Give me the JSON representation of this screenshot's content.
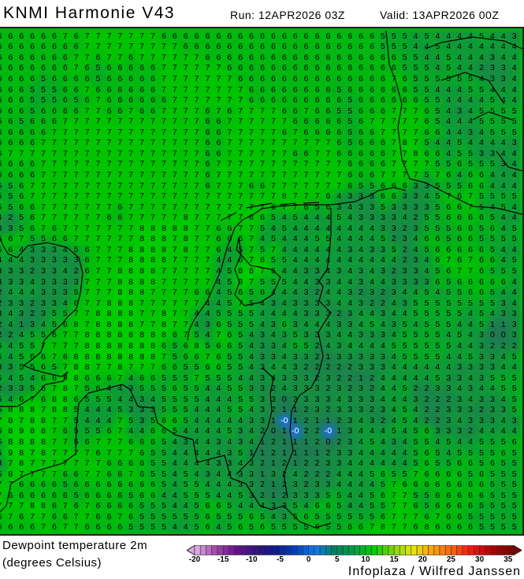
{
  "header": {
    "title": "KNMI Harmonie V43",
    "run": "Run: 12APR2026 03Z",
    "valid": "Valid: 13APR2026 00Z"
  },
  "map": {
    "watermark": "Infoplaza / Wilfred Janssen",
    "grid_values": [
      "6 6 6 6 6 6 7 6 7 7 7 7 7 7 7 6 6 6 6 6 6 6 6 6 6 6 6 6 6 6 6 6 6 6 6 5 5 5 4 5 4 4 4 4 5 4 4 3",
      "6 6 6 6 6 6 6 6 7 7 7 7 7 7 7 7 7 6 6 6 6 6 6 6 6 6 6 6 6 6 6 6 6 6 6 5 5 5 4 4 5 4 4 4 4 4 4 4",
      "6 6 6 6 6 6 6 7 7 6 7 7 6 7 7 7 7 7 7 6 6 6 6 6 6 6 6 6 6 6 6 6 6 6 6 6 6 5 5 4 4 5 4 4 4 3 4 4",
      "6 6 6 6 6 6 6 7 6 5 6 6 6 6 6 7 7 7 7 7 7 6 6 6 6 6 6 6 6 6 6 6 6 6 6 6 6 5 5 5 4 5 4 4 2 3 3 4",
      "6 6 6 6 5 6 6 6 6 5 6 6 6 6 6 7 7 7 7 7 7 7 6 6 6 6 6 6 6 6 6 6 6 6 6 6 7 6 5 5 5 5 5 5 4 3 3 4",
      "6 6 6 5 5 5 6 6 7 6 6 6 6 6 6 7 7 7 7 7 7 7 7 6 6 6 6 6 6 6 6 5 6 6 6 6 6 6 5 5 4 4 4 5 5 4 4 4",
      "6 6 6 5 5 5 6 5 6 7 6 6 6 6 6 6 7 7 7 7 7 7 7 6 6 6 6 6 6 6 6 6 5 6 6 6 6 6 6 5 5 4 4 4 4 5 4 4",
      "6 6 6 5 6 6 6 6 7 7 6 6 7 6 6 7 7 7 7 6 7 6 7 7 7 7 6 6 7 6 6 5 5 6 6 6 7 7 7 6 5 4 3 4 5 5 5 5",
      "6 6 5 6 6 6 7 7 7 7 7 7 7 7 7 7 7 7 7 6 6 7 7 7 7 7 7 6 6 6 6 6 5 6 7 7 7 7 7 6 5 4 4 4 5 5 5 5",
      "6 6 6 6 6 7 7 7 7 7 7 7 7 7 7 7 7 7 7 6 6 7 7 7 7 7 6 7 6 6 6 6 5 6 6 7 7 7 7 6 6 4 4 3 4 5 5 5",
      "6 6 6 6 7 7 7 7 7 7 7 7 7 7 7 7 7 7 7 6 6 7 7 7 7 7 7 7 7 7 7 6 5 6 6 6 7 8 7 5 4 4 5 4 4 4 4 3",
      "6 7 7 7 7 7 7 7 7 7 7 7 7 7 7 7 7 7 7 6 6 7 7 7 7 7 7 6 6 7 7 6 6 6 6 6 7 7 8 6 6 4 5 5 3 3 4 4",
      "6 6 6 6 7 7 7 7 7 7 7 7 7 7 7 7 7 7 7 6 7 7 7 7 7 7 7 7 7 7 7 7 6 6 6 6 7 7 7 7 5 5 6 5 5 5 3 4",
      "6 6 6 6 7 7 7 7 7 7 7 7 7 7 7 7 7 7 7 6 7 7 7 7 7 7 7 7 7 7 7 7 6 6 6 7 7 7 7 5 7 6 4 6 6 4 4 4",
      "5 5 6 7 7 7 7 7 7 7 7 7 7 7 7 7 7 7 7 6 7 7 7 6 6 7 7 7 7 7 7 7 6 5 5 6 6 6 3 3 5 5 5 6 6 4 4 4",
      "5 5 6 7 7 7 7 7 7 7 7 7 7 7 7 7 7 7 7 7 7 7 7 7 7 7 8 7 7 7 6 4 3 3 3 6 6 3 3 4 5 7 6 7 5 5 5 5",
      "6 5 6 6 7 7 7 7 7 7 7 6 7 7 7 7 7 7 7 7 7 7 7 7 7 6 7 7 6 5 6 3 4 3 3 5 3 3 3 3 5 6 6 7 5 4 5 4",
      "4 2 5 6 7 7 7 7 7 7 6 6 7 7 7 7 7 8 7 7 7 7 7 8 6 5 4 5 4 4 4 5 4 3 3 3 3 4 2 5 5 6 6 6 6 5 4 4",
      "3 3 5 6 7 6 7 7 7 7 7 7 7 8 8 8 8 8 7 7 6 6 7 7 5 4 5 4 4 4 4 4 4 4 4 3 3 2 3 5 5 5 6 6 5 6 4 5",
      "6 6 7 5 5 6 6 7 7 7 7 7 7 8 8 8 7 8 7 7 6 6 6 7 4 5 4 4 4 5 5 4 4 4 4 5 2 3 4 6 6 5 6 6 5 5 5 5",
      "5 6 4 3 3 3 4 5 6 7 7 7 8 8 8 8 7 8 7 7 6 4 5 7 5 7 4 4 4 4 4 4 3 4 3 3 5 2 4 5 6 6 6 6 6 5 4 4",
      "4 4 4 3 3 3 3 3 6 7 7 7 8 8 8 8 7 7 7 7 4 4 6 7 8 5 5 4 4 4 4 4 4 4 4 4 4 2 3 4 6 7 6 7 6 6 4 5",
      "3 3 3 2 3 3 4 2 6 7 7 8 8 8 8 7 7 7 7 7 4 5 8 8 7 6 4 4 3 3 4 3 4 3 4 3 2 3 3 4 5 6 7 7 6 5 5 5",
      "3 3 3 4 3 3 3 3 7 7 7 8 8 8 8 7 7 7 7 7 4 5 8 7 5 5 5 4 4 3 3 4 4 3 4 4 3 3 3 3 6 5 6 6 6 6 6 4",
      "2 4 4 4 3 3 3 5 7 7 7 8 8 8 7 7 7 7 6 6 4 5 6 5 6 4 4 4 3 2 4 4 3 2 3 2 3 4 4 5 4 5 5 6 6 5 4 4",
      "2 3 3 2 3 3 4 6 7 7 8 8 8 7 7 7 7 7 7 4 4 5 7 5 4 3 4 3 3 3 3 4 4 3 2 2 4 3 5 5 5 5 5 5 5 5 3 4",
      "3 4 3 2 3 5 5 7 7 8 8 8 8 7 7 8 7 7 4 4 5 5 5 5 4 4 4 4 3 3 3 2 3 4 4 3 4 4 5 5 5 5 5 4 5 4 3 3",
      "2 4 1 3 4 5 6 8 7 8 8 8 8 7 7 8 7 7 4 3 6 5 5 5 4 3 6 3 4 4 4 3 3 4 5 4 3 5 4 5 5 5 4 4 5 1 1 3",
      "2 2 4 5 5 6 7 7 8 8 8 8 8 8 8 8 6 7 5 4 7 6 5 4 3 4 3 5 3 3 3 4 4 3 3 3 4 5 5 5 5 4 5 4 3 0 0 3",
      "5 4 5 5 7 7 7 7 8 8 8 8 8 8 8 6 5 6 8 5 6 6 5 4 3 3 4 5 5 2 4 3 4 4 4 4 5 5 5 5 5 5 4 4 3 2 2 2",
      "5 4 5 6 6 7 6 8 8 8 8 8 8 8 8 7 5 6 6 7 6 5 5 4 3 3 4 3 3 2 1 3 3 3 3 3 4 5 5 5 5 4 4 5 3 3 4 5",
      "3 3 5 5 6 5 7 8 8 7 7 8 7 7 7 6 6 5 5 6 6 5 5 4 3 4 4 3 2 2 2 2 2 3 3 3 4 4 4 4 4 4 3 3 3 3 4 4",
      "5 4 5 4 6 6 9 8 6 6 6 7 4 6 6 5 5 5 7 5 5 5 4 4 3 4 3 3 3 2 3 2 2 1 2 4 4 4 4 4 5 3 3 4 3 5 5 5",
      "2 3 3 5 6 7 8 7 5 6 4 4 3 5 5 5 6 5 5 4 4 5 5 3 3 2 4 3 3 3 2 3 2 3 2 4 4 5 2 2 3 3 4 3 4 4 5 5",
      "5 4 6 7 6 8 8 6 5 5 5 4 4 3 4 5 5 5 5 4 4 4 5 5 3 3 0 3 3 3 3 4 3 3 3 4 4 4 3 2 2 2 3 4 3 3 4 5",
      "5 8 8 8 7 8 8 5 4 4 4 5 3 3 3 5 5 5 4 4 4 5 5 4 3 2 1 1 2 3 2 3 3 3 2 3 4 5 4 2 2 3 3 3 2 3 3 5",
      "7 8 7 8 8 7 7 5 4 4 4 7 5 3 5 6 6 5 4 4 4 4 4 3 3 1 -0 1 2 1 1 2 3 4 3 2 4 5 4 2 2 3 4 3 3 3 4 3",
      "6 8 9 8 8 7 6 5 5 5 6 7 4 4 6 6 5 4 4 4 4 5 3 4 2 0 1 -0 2 2 -0 1 3 4 4 4 5 4 5 6 3 3 3 2 4 4 4 4",
      "5 8 8 8 8 7 7 5 6 7 7 7 6 6 6 5 4 3 4 4 3 4 3 4 1 2 1 1 1 2 0 2 3 4 5 4 3 4 5 5 4 5 4 4 5 5 5 6",
      "5 9 8 7 8 7 7 7 7 6 7 7 7 6 5 5 4 4 4 4 4 3 5 1 1 2 1 1 1 1 2 3 3 4 4 4 4 4 5 6 5 4 5 5 5 5 6 5",
      "3 7 8 7 7 7 7 7 7 7 6 6 6 6 5 5 4 4 4 4 3 3 4 3 2 1 2 1 2 2 3 3 4 4 4 4 4 4 5 6 5 5 6 6 5 6 5 5",
      "5 8 7 7 7 7 6 6 7 7 6 6 7 6 5 5 4 5 4 3 4 4 3 3 1 3 2 4 2 2 2 4 4 4 5 6 5 5 7 6 6 6 6 5 6 5 5 5",
      "7 7 6 6 6 6 5 6 6 6 6 6 6 6 6 5 4 5 5 4 4 4 3 3 2 1 2 3 2 3 3 4 4 4 4 5 7 6 6 6 6 6 6 6 6 5 5 5",
      "7 6 6 6 6 6 6 5 6 6 6 6 5 6 6 4 4 5 5 5 4 4 5 3 2 1 2 3 3 3 5 5 4 4 5 6 7 7 5 5 6 6 6 6 6 5 5 5",
      "7 7 7 8 8 6 7 6 7 6 6 6 6 5 5 5 4 4 5 6 6 5 4 4 4 3 3 5 4 6 6 5 4 4 5 5 7 7 6 5 6 6 6 6 5 5 5 5",
      "6 7 6 7 7 6 6 7 7 6 6 7 6 5 5 5 5 5 5 6 5 5 5 6 5 4 3 5 6 5 5 5 5 5 5 6 7 7 7 6 7 6 6 5 5 5 5 5",
      "6 6 6 6 7 6 7 7 6 6 6 6 5 5 5 5 4 4 5 6 4 5 6 5 6 5 5 5 5 6 5 5 6 6 7 8 7 7 6 8 6 6 6 6 5 5 5 5"
    ],
    "value_colors": {
      "9": "#00d000",
      "8": "#00cc00",
      "7": "#00c400",
      "6": "#00b810",
      "5": "#07a828",
      "4": "#0f9a38",
      "3": "#168e42",
      "2": "#1b844a",
      "1": "#1e7c50",
      "0": "#217654",
      "negative": "#1a6cff"
    }
  },
  "legend": {
    "title": "Dewpoint temperature 2m",
    "units": "(degrees Celsius)",
    "range": [
      -20,
      35
    ],
    "tick_labels": [
      "-20",
      "-15",
      "-10",
      "-5",
      "0",
      "5",
      "10",
      "15",
      "20",
      "25",
      "30",
      "35"
    ],
    "color_stops": [
      "#d9a6e0",
      "#a040a8",
      "#6a1090",
      "#301080",
      "#0c1890",
      "#0040c0",
      "#1078f0",
      "#008060",
      "#00a040",
      "#00d000",
      "#80d800",
      "#e8e800",
      "#ffa000",
      "#ff6010",
      "#ff1010",
      "#b00000",
      "#800000"
    ]
  }
}
